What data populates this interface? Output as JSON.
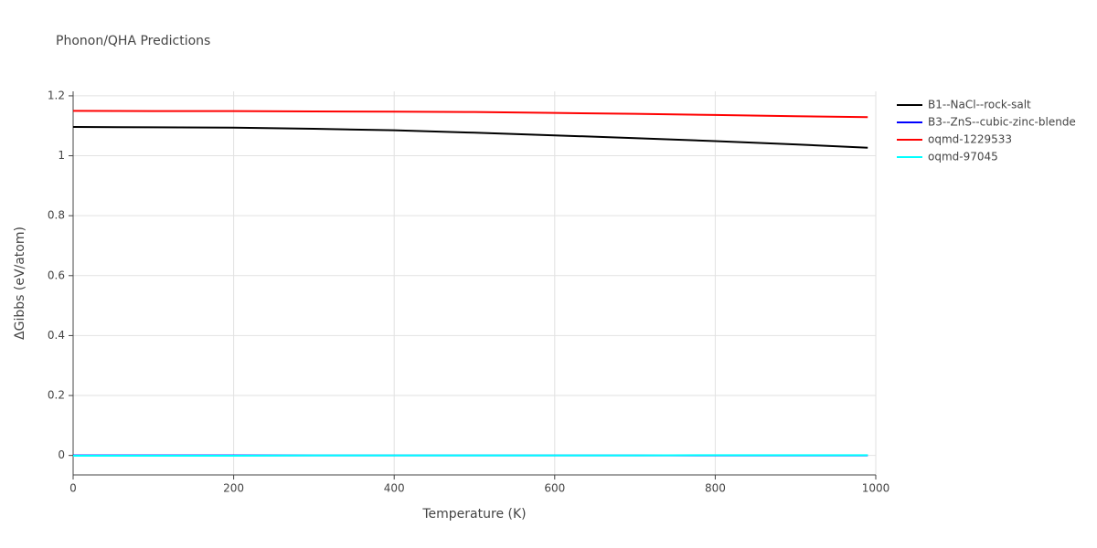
{
  "chart_data": {
    "type": "line",
    "title": "Phonon/QHA Predictions",
    "x_label": "Temperature (K)",
    "y_label": "ΔGibbs (eV/atom)",
    "x": [
      0,
      100,
      200,
      300,
      400,
      500,
      600,
      700,
      800,
      900,
      990
    ],
    "series": [
      {
        "name": "B1--NaCl--rock-salt",
        "color": "#000000",
        "values": [
          1.096,
          1.095,
          1.094,
          1.09,
          1.085,
          1.077,
          1.068,
          1.059,
          1.049,
          1.038,
          1.027
        ]
      },
      {
        "name": "B3--ZnS--cubic-zinc-blende",
        "color": "#0000ff",
        "values": [
          0,
          0,
          0,
          0,
          0,
          0,
          0,
          0,
          0,
          0,
          0
        ]
      },
      {
        "name": "oqmd-1229533",
        "color": "#ff0000",
        "values": [
          1.15,
          1.149,
          1.149,
          1.148,
          1.147,
          1.146,
          1.143,
          1.14,
          1.136,
          1.132,
          1.129
        ]
      },
      {
        "name": "oqmd-97045",
        "color": "#00ffff",
        "values": [
          -0.001,
          -0.001,
          -0.001,
          0,
          0,
          0,
          0,
          0,
          0.001,
          0.001,
          0.001
        ]
      }
    ],
    "xlim": [
      0,
      1000
    ],
    "xticks": [
      0,
      200,
      400,
      600,
      800,
      1000
    ],
    "ylim": [
      -0.065,
      1.215
    ],
    "yticks": [
      0,
      0.2,
      0.4,
      0.6,
      0.8,
      1,
      1.2
    ],
    "grid": true,
    "legend": "right"
  }
}
